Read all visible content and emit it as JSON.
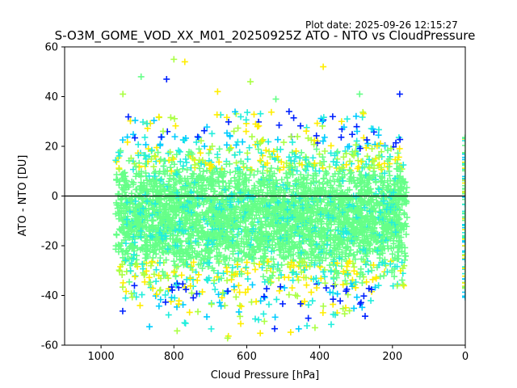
{
  "plot_date": "Plot date: 2025-09-26 12:15:27",
  "chart_data": {
    "type": "scatter",
    "title": "S-O3M_GOME_VOD_XX_M01_20250925Z ATO - NTO vs CloudPressure",
    "xlabel": "Cloud Pressure [hPa]",
    "ylabel": "ATO - NTO [DU]",
    "xlim": [
      1100,
      0
    ],
    "ylim": [
      -60,
      60
    ],
    "xticks": [
      1000,
      800,
      600,
      400,
      200,
      0
    ],
    "yticks": [
      -60,
      -40,
      -20,
      0,
      20,
      40,
      60
    ],
    "reference_line_y": 0,
    "marker": "+",
    "colors": {
      "green": "#66ff88",
      "cyan": "#22eedd",
      "yellow": "#ffee00",
      "lime": "#aaff44",
      "blue": "#0022ff",
      "sky": "#00ccff"
    },
    "distribution": {
      "x_range": [
        960,
        160
      ],
      "core_mean": -8,
      "core_spread": 18,
      "upper_outliers": [
        {
          "x": 800,
          "y": 55
        },
        {
          "x": 770,
          "y": 54
        },
        {
          "x": 890,
          "y": 48
        },
        {
          "x": 820,
          "y": 47
        },
        {
          "x": 590,
          "y": 46
        },
        {
          "x": 390,
          "y": 52
        },
        {
          "x": 520,
          "y": 39
        },
        {
          "x": 180,
          "y": 41
        },
        {
          "x": 940,
          "y": 41
        },
        {
          "x": 680,
          "y": 42
        },
        {
          "x": 290,
          "y": 41
        }
      ],
      "edge_column_x": 0
    }
  }
}
